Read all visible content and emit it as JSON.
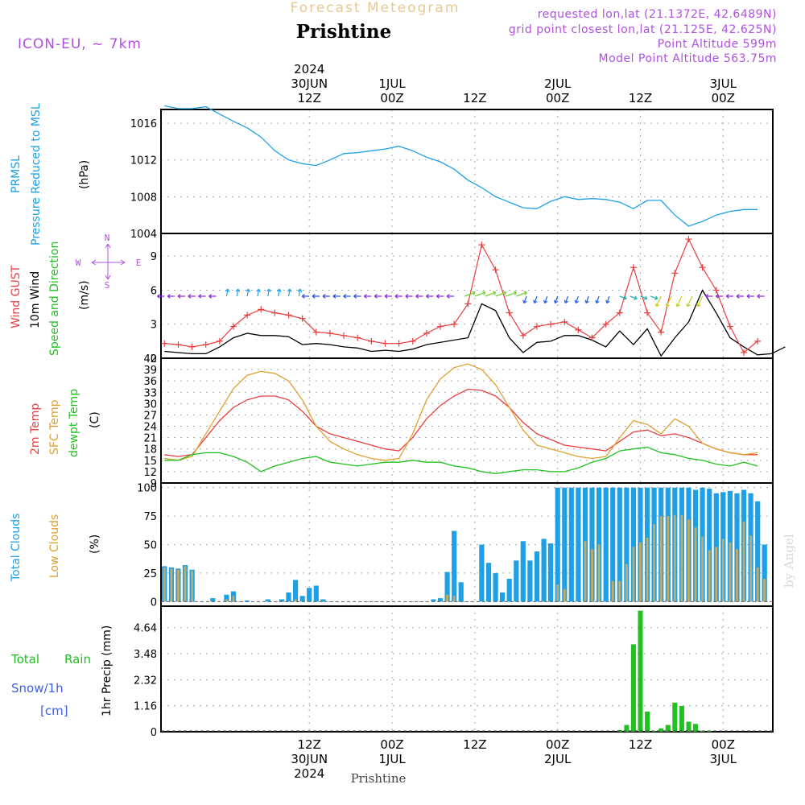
{
  "header": {
    "title": "Forecast Meteogram",
    "location": "Prishtine",
    "model": "ICON-EU, ~ 7km",
    "requested": "requested lon,lat (21.1372E, 42.6489N)",
    "grid_point": "grid point closest lon,lat (21.125E, 42.625N)",
    "point_altitude": "Point Altitude 599m",
    "model_altitude": "Model Point Altitude 563.75m",
    "footer_location": "Prishtine",
    "watermark": "by Angel"
  },
  "time_axis": {
    "year_label": "2024",
    "ticks_top": [
      {
        "h": 12,
        "line1": "2024",
        "line2": "30JUN",
        "line3": "12Z"
      },
      {
        "h": 24,
        "line1": "",
        "line2": "1JUL",
        "line3": "00Z"
      },
      {
        "h": 36,
        "line1": "",
        "line2": "",
        "line3": "12Z"
      },
      {
        "h": 48,
        "line1": "",
        "line2": "2JUL",
        "line3": "00Z"
      },
      {
        "h": 60,
        "line1": "",
        "line2": "",
        "line3": "12Z"
      },
      {
        "h": 72,
        "line1": "",
        "line2": "3JUL",
        "line3": "00Z"
      }
    ],
    "ticks_bottom": [
      {
        "h": 12,
        "line1": "12Z",
        "line2": "30JUN",
        "line3": "2024"
      },
      {
        "h": 24,
        "line1": "00Z",
        "line2": "1JUL",
        "line3": ""
      },
      {
        "h": 36,
        "line1": "12Z",
        "line2": "",
        "line3": ""
      },
      {
        "h": 48,
        "line1": "00Z",
        "line2": "2JUL",
        "line3": ""
      },
      {
        "h": 60,
        "line1": "12Z",
        "line2": "",
        "line3": ""
      },
      {
        "h": 72,
        "line1": "00Z",
        "line2": "3JUL",
        "line3": ""
      }
    ]
  },
  "panel_labels": {
    "pressure": {
      "l1": "PRMSL",
      "l2": "Pressure Reduced to MSL",
      "unit": "(hPa)"
    },
    "wind": {
      "l1": "Wind GUST",
      "l2": "10m Wind",
      "l3": "Speed and Direction",
      "unit": "(m/s)",
      "compass_n": "N",
      "compass_s": "S",
      "compass_w": "W",
      "compass_e": "E"
    },
    "temp": {
      "l1": "2m Temp",
      "l2": "SFC Temp",
      "l3": "dewpt Temp",
      "unit": "(C)"
    },
    "clouds": {
      "l1": "Total Clouds",
      "l2": "Low Clouds",
      "unit": "(%)"
    },
    "precip": {
      "l1": "Total",
      "l1b": "Rain",
      "l2": "Snow/1h",
      "l3": "[cm]",
      "unit": "1hr Precip (mm)"
    }
  },
  "colors": {
    "pressure": "#1ea0e6",
    "gust": "#e84040",
    "wind": "#000000",
    "temp2m": "#e84040",
    "sfc": "#e0a030",
    "dew": "#20c020",
    "total_cloud": "#1ea0e6",
    "low_cloud": "#c8aa60",
    "rain": "#22c022",
    "snow": "#4060e0",
    "title": "#e8c890",
    "purple": "#b050e0"
  },
  "chart_data": [
    {
      "type": "line",
      "name": "pressure",
      "ylabel": "(hPa)",
      "ylim": [
        1004,
        1017.5
      ],
      "yticks": [
        1004,
        1008,
        1012,
        1016
      ],
      "x": [
        -9,
        -7,
        -5,
        -3,
        -1,
        1,
        3,
        5,
        7,
        9,
        11,
        13,
        15,
        17,
        19,
        21,
        23,
        25,
        27,
        29,
        31,
        33,
        35,
        37,
        39,
        41,
        43,
        45,
        47,
        49,
        51,
        53,
        55,
        57,
        59,
        61,
        63,
        65,
        67,
        69,
        71,
        73,
        75,
        77
      ],
      "series": [
        {
          "name": "PRMSL",
          "values": [
            1017.9,
            1017.6,
            1017.6,
            1017.8,
            1017.0,
            1016.2,
            1015.5,
            1014.5,
            1013.0,
            1012.0,
            1011.6,
            1011.4,
            1012.0,
            1012.7,
            1012.8,
            1013.0,
            1013.2,
            1013.5,
            1013.0,
            1012.3,
            1011.8,
            1011.0,
            1009.8,
            1009.0,
            1008.0,
            1007.4,
            1006.8,
            1006.7,
            1007.5,
            1008.0,
            1007.7,
            1007.8,
            1007.7,
            1007.4,
            1006.7,
            1007.6,
            1007.6,
            1006.0,
            1004.8,
            1005.3,
            1006.0,
            1006.4,
            1006.6,
            1006.6
          ]
        }
      ]
    },
    {
      "type": "line",
      "name": "wind",
      "ylabel": "(m/s)",
      "ylim": [
        0,
        11
      ],
      "yticks": [
        0,
        3,
        6,
        9
      ],
      "x": [
        -9,
        -7,
        -5,
        -3,
        -1,
        1,
        3,
        5,
        7,
        9,
        11,
        13,
        15,
        17,
        19,
        21,
        23,
        25,
        27,
        29,
        31,
        33,
        35,
        37,
        39,
        41,
        43,
        45,
        47,
        49,
        51,
        53,
        55,
        57,
        59,
        61,
        63,
        65,
        67,
        69,
        71,
        73,
        75,
        77
      ],
      "series": [
        {
          "name": "Wind GUST",
          "values": [
            1.3,
            1.2,
            1.0,
            1.2,
            1.5,
            2.8,
            3.8,
            4.3,
            4.0,
            3.8,
            3.5,
            2.3,
            2.2,
            2.0,
            1.8,
            1.5,
            1.3,
            1.3,
            1.5,
            2.2,
            2.8,
            3.0,
            4.8,
            10.0,
            7.8,
            4.0,
            2.0,
            2.8,
            3.0,
            3.2,
            2.5,
            1.8,
            3.0,
            4.0,
            8.0,
            4.0,
            2.3,
            7.5,
            10.5,
            8.0,
            6.0,
            2.8,
            0.5,
            1.5
          ],
          "x": [
            -9,
            -7,
            -5,
            -3,
            -1,
            1,
            3,
            5,
            7,
            9,
            11,
            13,
            15,
            17,
            19,
            21,
            23,
            25,
            27,
            29,
            31,
            33,
            35,
            37,
            39,
            41,
            43,
            45,
            47,
            49,
            51,
            53,
            55,
            57,
            59,
            61,
            63,
            65,
            67,
            69,
            71,
            73,
            75,
            77
          ]
        },
        {
          "name": "10m Wind",
          "values": [
            0.6,
            0.5,
            0.4,
            0.4,
            1.0,
            1.8,
            2.2,
            2.0,
            2.0,
            1.9,
            1.2,
            1.3,
            1.2,
            1.0,
            0.9,
            0.6,
            0.7,
            0.6,
            0.8,
            1.2,
            1.8,
            4.8,
            4.2,
            1.8,
            0.5,
            1.4,
            1.5,
            2.0,
            2.0,
            1.6,
            1.0,
            2.4,
            1.2,
            2.6,
            0.2,
            1.8,
            3.2,
            6.0,
            4.0,
            1.8,
            1.0,
            0.3,
            0.4,
            1.0
          ],
          "x": [
            -9,
            -7,
            -5,
            -3,
            -1,
            1,
            3,
            5,
            7,
            9,
            11,
            13,
            15,
            17,
            19,
            21,
            23,
            25,
            27,
            29,
            35,
            37,
            39,
            41,
            43,
            45,
            47,
            49,
            51,
            53,
            55,
            57,
            59,
            61,
            63,
            65,
            67,
            69,
            71,
            73,
            75,
            77,
            79,
            81
          ]
        }
      ]
    },
    {
      "type": "line",
      "name": "temperature",
      "ylabel": "(C)",
      "ylim": [
        9,
        42
      ],
      "yticks": [
        9,
        12,
        15,
        18,
        21,
        24,
        27,
        30,
        33,
        36,
        39,
        42
      ],
      "x": [
        -9,
        -7,
        -5,
        -3,
        -1,
        1,
        3,
        5,
        7,
        9,
        11,
        13,
        15,
        17,
        19,
        21,
        23,
        25,
        27,
        29,
        31,
        33,
        35,
        37,
        39,
        41,
        43,
        45,
        47,
        49,
        51,
        53,
        55,
        57,
        59,
        61,
        63,
        65,
        67,
        69,
        71,
        73,
        75,
        77
      ],
      "series": [
        {
          "name": "2m Temp",
          "values": [
            16.5,
            16.0,
            16.5,
            21.0,
            25.5,
            29.0,
            31.0,
            32.0,
            32.0,
            31.0,
            28.0,
            24.0,
            22.0,
            21.0,
            20.0,
            19.0,
            18.0,
            17.5,
            21.0,
            26.0,
            29.5,
            32.0,
            33.8,
            33.5,
            32.0,
            29.0,
            25.0,
            22.0,
            20.5,
            19.0,
            18.5,
            18.0,
            17.5,
            20.0,
            22.5,
            23.0,
            21.5,
            22.0,
            21.0,
            19.5,
            18.0,
            17.0,
            16.5,
            16.5
          ]
        },
        {
          "name": "SFC Temp",
          "values": [
            15.5,
            15.0,
            16.0,
            22.0,
            28.0,
            34.0,
            37.5,
            38.5,
            38.0,
            36.0,
            31.0,
            24.0,
            20.0,
            18.0,
            16.5,
            15.5,
            15.0,
            15.5,
            22.0,
            31.0,
            36.5,
            39.5,
            40.5,
            39.0,
            35.0,
            29.0,
            23.0,
            19.0,
            18.0,
            17.0,
            16.0,
            15.5,
            16.0,
            21.0,
            25.5,
            24.5,
            22.0,
            26.0,
            24.0,
            19.5,
            18.0,
            17.0,
            16.5,
            17.0
          ]
        },
        {
          "name": "dewpt Temp",
          "values": [
            15.0,
            15.0,
            16.5,
            17.0,
            17.0,
            16.0,
            14.5,
            12.0,
            13.5,
            14.5,
            15.5,
            16.0,
            14.5,
            14.0,
            13.5,
            14.0,
            14.5,
            14.5,
            15.0,
            14.5,
            14.5,
            13.5,
            13.0,
            12.0,
            11.5,
            12.0,
            12.5,
            12.5,
            12.0,
            12.0,
            13.0,
            14.5,
            15.5,
            17.5,
            18.0,
            18.5,
            17.0,
            16.5,
            15.5,
            15.0,
            14.0,
            13.5,
            14.5,
            13.5
          ]
        }
      ]
    },
    {
      "type": "bar",
      "name": "clouds",
      "ylabel": "(%)",
      "ylim": [
        -4,
        104
      ],
      "yticks": [
        0,
        25,
        50,
        75,
        100
      ],
      "x": [
        -9,
        -8,
        -7,
        -6,
        -5,
        -4,
        -3,
        -2,
        -1,
        0,
        1,
        2,
        3,
        4,
        5,
        6,
        7,
        8,
        9,
        10,
        11,
        12,
        13,
        14,
        15,
        16,
        17,
        18,
        19,
        20,
        21,
        22,
        23,
        24,
        25,
        26,
        27,
        28,
        29,
        30,
        31,
        32,
        33,
        34,
        35,
        36,
        37,
        38,
        39,
        40,
        41,
        42,
        43,
        44,
        45,
        46,
        47,
        48,
        49,
        50,
        51,
        52,
        53,
        54,
        55,
        56,
        57,
        58,
        59,
        60,
        61,
        62,
        63,
        64,
        65,
        66,
        67,
        68,
        69,
        70,
        71,
        72,
        73,
        74,
        75,
        76,
        77,
        78
      ],
      "series": [
        {
          "name": "Total Clouds",
          "values": [
            31,
            30,
            29,
            32,
            28,
            0,
            0,
            3,
            0,
            6,
            9,
            0,
            1,
            0,
            0,
            2,
            0,
            2,
            8,
            19,
            5,
            12,
            14,
            2,
            0,
            0,
            0,
            0,
            0,
            0,
            0,
            0,
            0,
            0,
            0,
            0,
            0,
            0,
            0,
            2,
            3,
            26,
            62,
            17,
            0,
            0,
            50,
            34,
            25,
            8,
            20,
            36,
            53,
            36,
            44,
            55,
            51,
            100,
            100,
            100,
            100,
            100,
            100,
            100,
            100,
            100,
            100,
            100,
            100,
            100,
            100,
            100,
            100,
            100,
            100,
            100,
            100,
            98,
            100,
            99,
            95,
            96,
            97,
            95,
            98,
            95,
            88,
            50
          ]
        },
        {
          "name": "Low Clouds",
          "values": [
            30,
            29,
            28,
            31,
            27,
            0,
            0,
            0,
            0,
            2,
            5,
            0,
            0,
            0,
            0,
            0,
            0,
            0,
            0,
            2,
            0,
            0,
            0,
            0,
            0,
            0,
            0,
            0,
            0,
            0,
            0,
            0,
            0,
            0,
            0,
            0,
            0,
            0,
            0,
            0,
            0,
            6,
            5,
            0,
            0,
            0,
            0,
            0,
            0,
            0,
            0,
            0,
            0,
            0,
            0,
            0,
            0,
            15,
            11,
            0,
            0,
            53,
            46,
            50,
            0,
            18,
            18,
            33,
            48,
            52,
            56,
            68,
            75,
            75,
            76,
            76,
            72,
            65,
            57,
            45,
            48,
            55,
            52,
            46,
            70,
            58,
            30,
            20
          ]
        }
      ]
    },
    {
      "type": "bar",
      "name": "precipitation",
      "ylabel": "1hr Precip (mm)",
      "ylim": [
        0,
        5.6
      ],
      "yticks": [
        0,
        1.16,
        2.32,
        3.48,
        4.64
      ],
      "x": [
        57,
        58,
        59,
        60,
        61,
        62,
        63,
        64,
        65,
        66,
        67,
        68,
        69,
        70
      ],
      "series": [
        {
          "name": "Total Rain",
          "values": [
            0.08,
            0.3,
            3.9,
            5.4,
            0.9,
            0.02,
            0.15,
            0.3,
            1.3,
            1.15,
            0.45,
            0.35,
            0.05,
            0.02
          ]
        }
      ]
    }
  ]
}
